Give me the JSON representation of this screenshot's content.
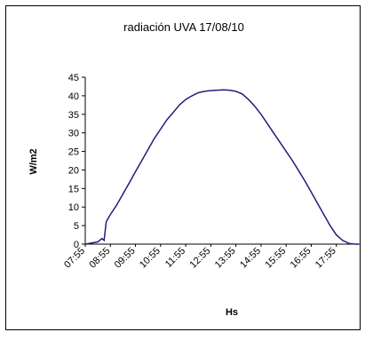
{
  "chart_data": {
    "type": "line",
    "title": "radiación UVA 17/08/10",
    "xlabel": "Hs",
    "ylabel": "W/m2",
    "ylim": [
      0,
      45
    ],
    "yticks": [
      "0",
      "5",
      "10",
      "15",
      "20",
      "25",
      "30",
      "35",
      "40",
      "45"
    ],
    "categories": [
      "07:55",
      "08:55",
      "09:55",
      "10:55",
      "11:55",
      "12:55",
      "13:55",
      "14:55",
      "15:55",
      "16:55",
      "17:55"
    ],
    "grid": false,
    "legend": "none",
    "series": [
      {
        "color": "#1f1f7a",
        "x": [
          "07:55",
          "08:10",
          "08:25",
          "08:35",
          "08:40",
          "08:45",
          "08:55",
          "09:10",
          "09:25",
          "09:40",
          "09:55",
          "10:10",
          "10:25",
          "10:40",
          "10:55",
          "11:10",
          "11:25",
          "11:40",
          "11:55",
          "12:10",
          "12:25",
          "12:40",
          "12:55",
          "13:10",
          "13:25",
          "13:40",
          "13:55",
          "14:10",
          "14:25",
          "14:40",
          "14:55",
          "15:10",
          "15:25",
          "15:40",
          "15:55",
          "16:10",
          "16:25",
          "16:40",
          "16:55",
          "17:10",
          "17:25",
          "17:40",
          "17:55",
          "18:10",
          "18:25",
          "18:40",
          "18:50"
        ],
        "values": [
          0,
          0.3,
          0.6,
          1.5,
          1.0,
          6.0,
          8.0,
          10.5,
          13.5,
          16.5,
          19.5,
          22.5,
          25.5,
          28.5,
          31.0,
          33.5,
          35.5,
          37.5,
          39.0,
          40.0,
          40.8,
          41.2,
          41.4,
          41.5,
          41.6,
          41.5,
          41.2,
          40.5,
          39.0,
          37.2,
          35.0,
          32.5,
          30.0,
          27.5,
          25.0,
          22.5,
          19.8,
          17.0,
          14.0,
          11.0,
          8.0,
          5.0,
          2.5,
          1.0,
          0.2,
          0.0,
          0.0
        ]
      }
    ]
  }
}
